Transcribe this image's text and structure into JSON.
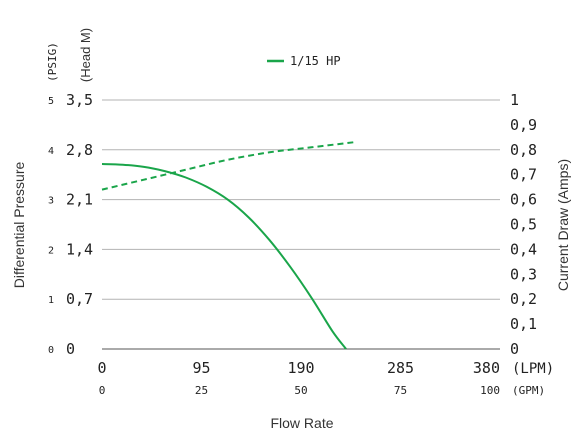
{
  "chart_data": {
    "type": "line",
    "legend": {
      "position": "top-center",
      "label": "1/15 HP",
      "color": "#1aa54a"
    },
    "y_left_title_outer": "Differential Pressure",
    "y_left_unit_outer": "(PSIG)",
    "y_left_unit_inner": "(Head M)",
    "y_right_title": "Current Draw (Amps)",
    "x_title": "Flow Rate",
    "x_unit_top": "(LPM)",
    "x_unit_bottom": "(GPM)",
    "psig_ticks": [
      "0",
      "1",
      "2",
      "3",
      "4",
      "5"
    ],
    "head_ticks": [
      "0",
      "0,7",
      "1,4",
      "2,1",
      "2,8",
      "3,5"
    ],
    "amp_ticks": [
      "0",
      "0,1",
      "0,2",
      "0,3",
      "0,4",
      "0,5",
      "0,6",
      "0,7",
      "0,8",
      "0,9",
      "1"
    ],
    "lpm_ticks": [
      "0",
      "95",
      "190",
      "285",
      "380"
    ],
    "gpm_ticks": [
      "0",
      "25",
      "50",
      "75",
      "100"
    ],
    "x_range_lpm": [
      0,
      380
    ],
    "head_range": [
      0,
      3.5
    ],
    "amp_range": [
      0,
      1
    ],
    "grid": true,
    "series": [
      {
        "name": "1/15 HP",
        "axis": "head",
        "style": "solid",
        "color": "#1aa54a",
        "x": [
          0,
          20,
          40,
          60,
          80,
          100,
          120,
          140,
          160,
          180,
          200,
          220,
          233
        ],
        "y": [
          2.6,
          2.59,
          2.56,
          2.5,
          2.41,
          2.28,
          2.1,
          1.85,
          1.53,
          1.15,
          0.72,
          0.25,
          0.0
        ]
      },
      {
        "name": "1/15 HP",
        "axis": "amps",
        "style": "dashed",
        "color": "#1aa54a",
        "x": [
          0,
          40,
          80,
          120,
          160,
          200,
          240
        ],
        "y": [
          0.64,
          0.68,
          0.72,
          0.76,
          0.79,
          0.81,
          0.83
        ]
      }
    ]
  }
}
